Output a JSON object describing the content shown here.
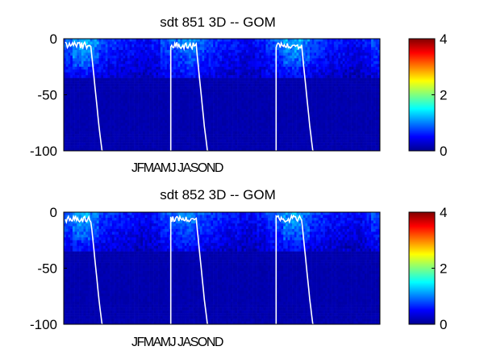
{
  "chart_data": [
    {
      "type": "heatmap",
      "title": "sdt  851 3D   -- GOM",
      "xlabel": "",
      "ylabel": "",
      "month_label": "JFMAMJ JASOND",
      "yticks": [
        "0",
        "-50",
        "-100"
      ],
      "ylim": [
        -100,
        0
      ],
      "years": 3,
      "colorbar": {
        "ticks": [
          "0",
          "2",
          "4"
        ],
        "range": [
          0,
          4
        ],
        "colormap": "jet"
      },
      "surface_enhanced_to_depth": -35,
      "mixed_layer_depth_by_month": [
        -3,
        -5,
        -8,
        -18,
        -55,
        -100,
        -100,
        -100,
        -100,
        -100,
        -100,
        -5
      ],
      "intensity_surface_by_month": [
        0.9,
        1.0,
        1.1,
        0.9,
        0.8,
        0.7,
        0.6,
        0.6,
        0.5,
        0.5,
        0.6,
        0.8
      ],
      "overlay_color": "#ffffff"
    },
    {
      "type": "heatmap",
      "title": "sdt  852 3D   -- GOM",
      "xlabel": "",
      "ylabel": "",
      "month_label": "JFMAMJ JASOND",
      "yticks": [
        "0",
        "-50",
        "-100"
      ],
      "ylim": [
        -100,
        0
      ],
      "years": 3,
      "colorbar": {
        "ticks": [
          "0",
          "2",
          "4"
        ],
        "range": [
          0,
          4
        ],
        "colormap": "jet"
      },
      "surface_enhanced_to_depth": -35,
      "mixed_layer_depth_by_month": [
        -3,
        -5,
        -8,
        -18,
        -55,
        -100,
        -100,
        -100,
        -100,
        -100,
        -100,
        -5
      ],
      "intensity_surface_by_month": [
        0.9,
        1.0,
        1.05,
        0.85,
        0.75,
        0.7,
        0.6,
        0.6,
        0.5,
        0.5,
        0.6,
        0.8
      ],
      "overlay_color": "#ffffff"
    }
  ]
}
